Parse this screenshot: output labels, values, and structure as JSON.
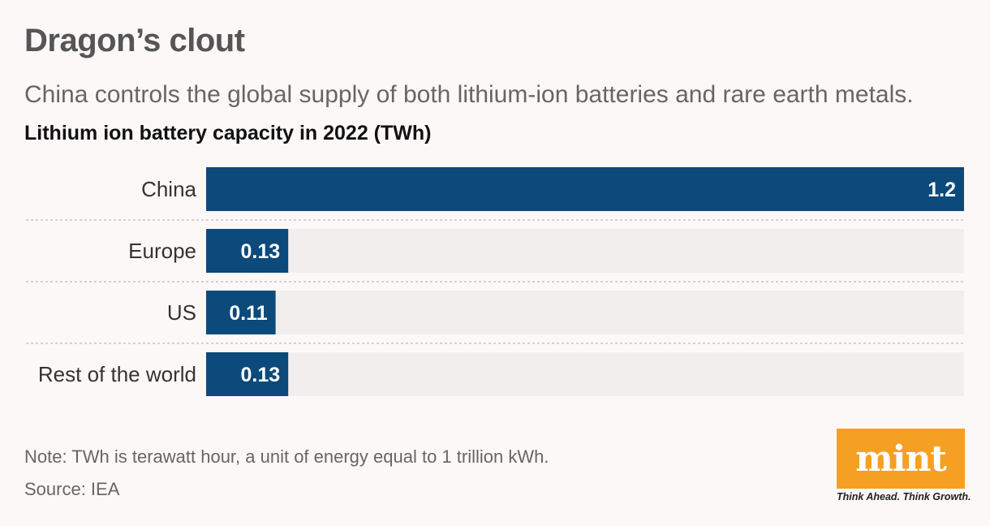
{
  "header": {
    "title": "Dragon’s clout",
    "subtitle": "China controls the global supply of both lithium-ion batteries and rare earth metals.",
    "chart_heading": "Lithium ion battery capacity in 2022 (TWh)"
  },
  "footer": {
    "note": "Note: TWh is terawatt hour, a unit of energy equal to 1 trillion kWh.",
    "source": "Source: IEA"
  },
  "brand": {
    "logo_text": "mint",
    "tagline": "Think Ahead. Think Growth.",
    "logo_color": "#f5a023"
  },
  "colors": {
    "bar": "#0b4a7b",
    "track": "#f2eeed",
    "label": "#333333",
    "value_text": "#ffffff"
  },
  "chart_data": {
    "type": "bar",
    "orientation": "horizontal",
    "title": "Lithium ion battery capacity in 2022 (TWh)",
    "categories": [
      "China",
      "Europe",
      "US",
      "Rest of the world"
    ],
    "values": [
      1.2,
      0.13,
      0.11,
      0.13
    ],
    "value_labels": [
      "1.2",
      "0.13",
      "0.11",
      "0.13"
    ],
    "xlim": [
      0,
      1.2
    ],
    "xlabel": "",
    "ylabel": "",
    "grid": false
  }
}
